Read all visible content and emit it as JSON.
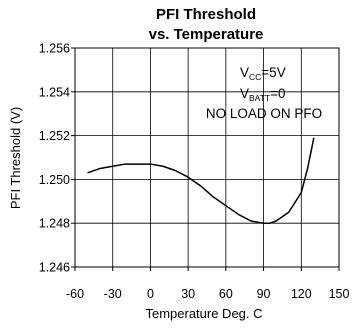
{
  "chart_data": {
    "type": "line",
    "title_line1": "PFI Threshold",
    "title_line2": "vs. Temperature",
    "xlabel": "Temperature Deg. C",
    "ylabel": "PFI Threshold (V)",
    "xlim": [
      -60,
      150
    ],
    "ylim": [
      1.246,
      1.256
    ],
    "x_ticks": [
      -60,
      -30,
      0,
      30,
      60,
      90,
      120,
      150
    ],
    "x_tick_labels": [
      "-60",
      "-30",
      "0",
      "30",
      "60",
      "90",
      "120",
      "150"
    ],
    "y_ticks": [
      1.246,
      1.248,
      1.25,
      1.252,
      1.254,
      1.256
    ],
    "y_tick_labels": [
      "1.246",
      "1.248",
      "1.250",
      "1.252",
      "1.254",
      "1.256"
    ],
    "grid": true,
    "series": [
      {
        "x": [
          -50,
          -40,
          -30,
          -20,
          -10,
          0,
          10,
          20,
          30,
          40,
          50,
          60,
          70,
          80,
          90,
          95,
          100,
          110,
          120,
          125,
          130
        ],
        "y": [
          1.2503,
          1.2505,
          1.2506,
          1.2507,
          1.2507,
          1.2507,
          1.2506,
          1.2504,
          1.2501,
          1.2497,
          1.2492,
          1.2488,
          1.2484,
          1.2481,
          1.248,
          1.248,
          1.2481,
          1.2485,
          1.2494,
          1.2505,
          1.2519
        ]
      }
    ],
    "annotations": {
      "vcc_main": "V",
      "vcc_sub": "CC",
      "vcc_value": "=5V",
      "vbatt_main": "V",
      "vbatt_sub": "BATT",
      "vbatt_value": "=0",
      "load_note": "NO LOAD ON PFO"
    }
  }
}
